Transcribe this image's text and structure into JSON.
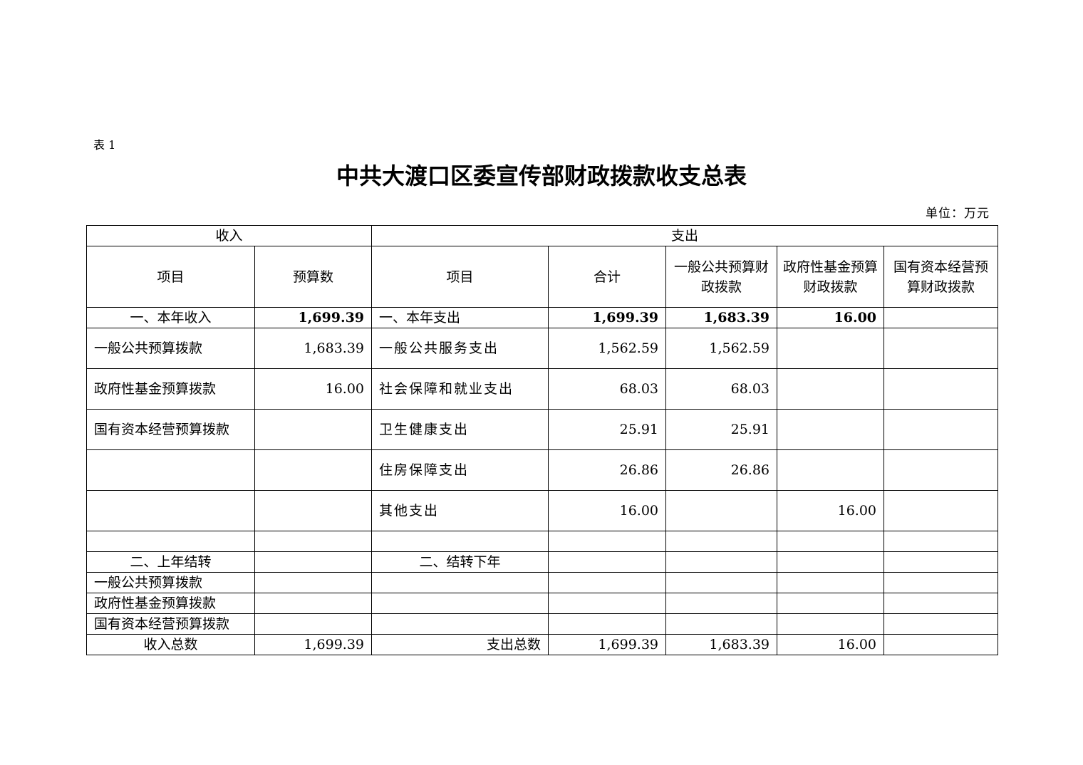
{
  "table_no": "表 1",
  "title": "中共大渡口区委宣传部财政拨款收支总表",
  "unit": "单位：万元",
  "header": {
    "income": "收入",
    "expense": "支出",
    "columns": [
      "项目",
      "预算数",
      "项目",
      "合计",
      "一般公共预算财政拨款",
      "政府性基金预算财政拨款",
      "国有资本经营预算财政拨款"
    ]
  },
  "rows": [
    {
      "cells": [
        "一、本年收入",
        "1,699.39",
        "一、本年支出",
        "1,699.39",
        "1,683.39",
        "16.00",
        ""
      ],
      "bold": true
    },
    {
      "cells": [
        "一般公共预算拨款",
        "1,683.39",
        "一般公共服务支出",
        "1,562.59",
        "1,562.59",
        "",
        ""
      ]
    },
    {
      "cells": [
        "政府性基金预算拨款",
        "16.00",
        "社会保障和就业支出",
        "68.03",
        "68.03",
        "",
        ""
      ]
    },
    {
      "cells": [
        "国有资本经营预算拨款",
        "",
        "卫生健康支出",
        "25.91",
        "25.91",
        "",
        ""
      ]
    },
    {
      "cells": [
        "",
        "",
        "住房保障支出",
        "26.86",
        "26.86",
        "",
        ""
      ]
    },
    {
      "cells": [
        "",
        "",
        "其他支出",
        "16.00",
        "",
        "16.00",
        ""
      ]
    },
    {
      "cells": [
        "",
        "",
        "",
        "",
        "",
        "",
        ""
      ]
    },
    {
      "cells": [
        "二、上年结转",
        "",
        "二、结转下年",
        "",
        "",
        "",
        ""
      ]
    },
    {
      "cells": [
        "一般公共预算拨款",
        "",
        "",
        "",
        "",
        "",
        ""
      ]
    },
    {
      "cells": [
        "政府性基金预算拨款",
        "",
        "",
        "",
        "",
        "",
        ""
      ]
    },
    {
      "cells": [
        "国有资本经营预算拨款",
        "",
        "",
        "",
        "",
        "",
        ""
      ]
    },
    {
      "cells": [
        "收入总数",
        "1,699.39",
        "支出总数",
        "1,699.39",
        "1,683.39",
        "16.00",
        ""
      ]
    }
  ]
}
